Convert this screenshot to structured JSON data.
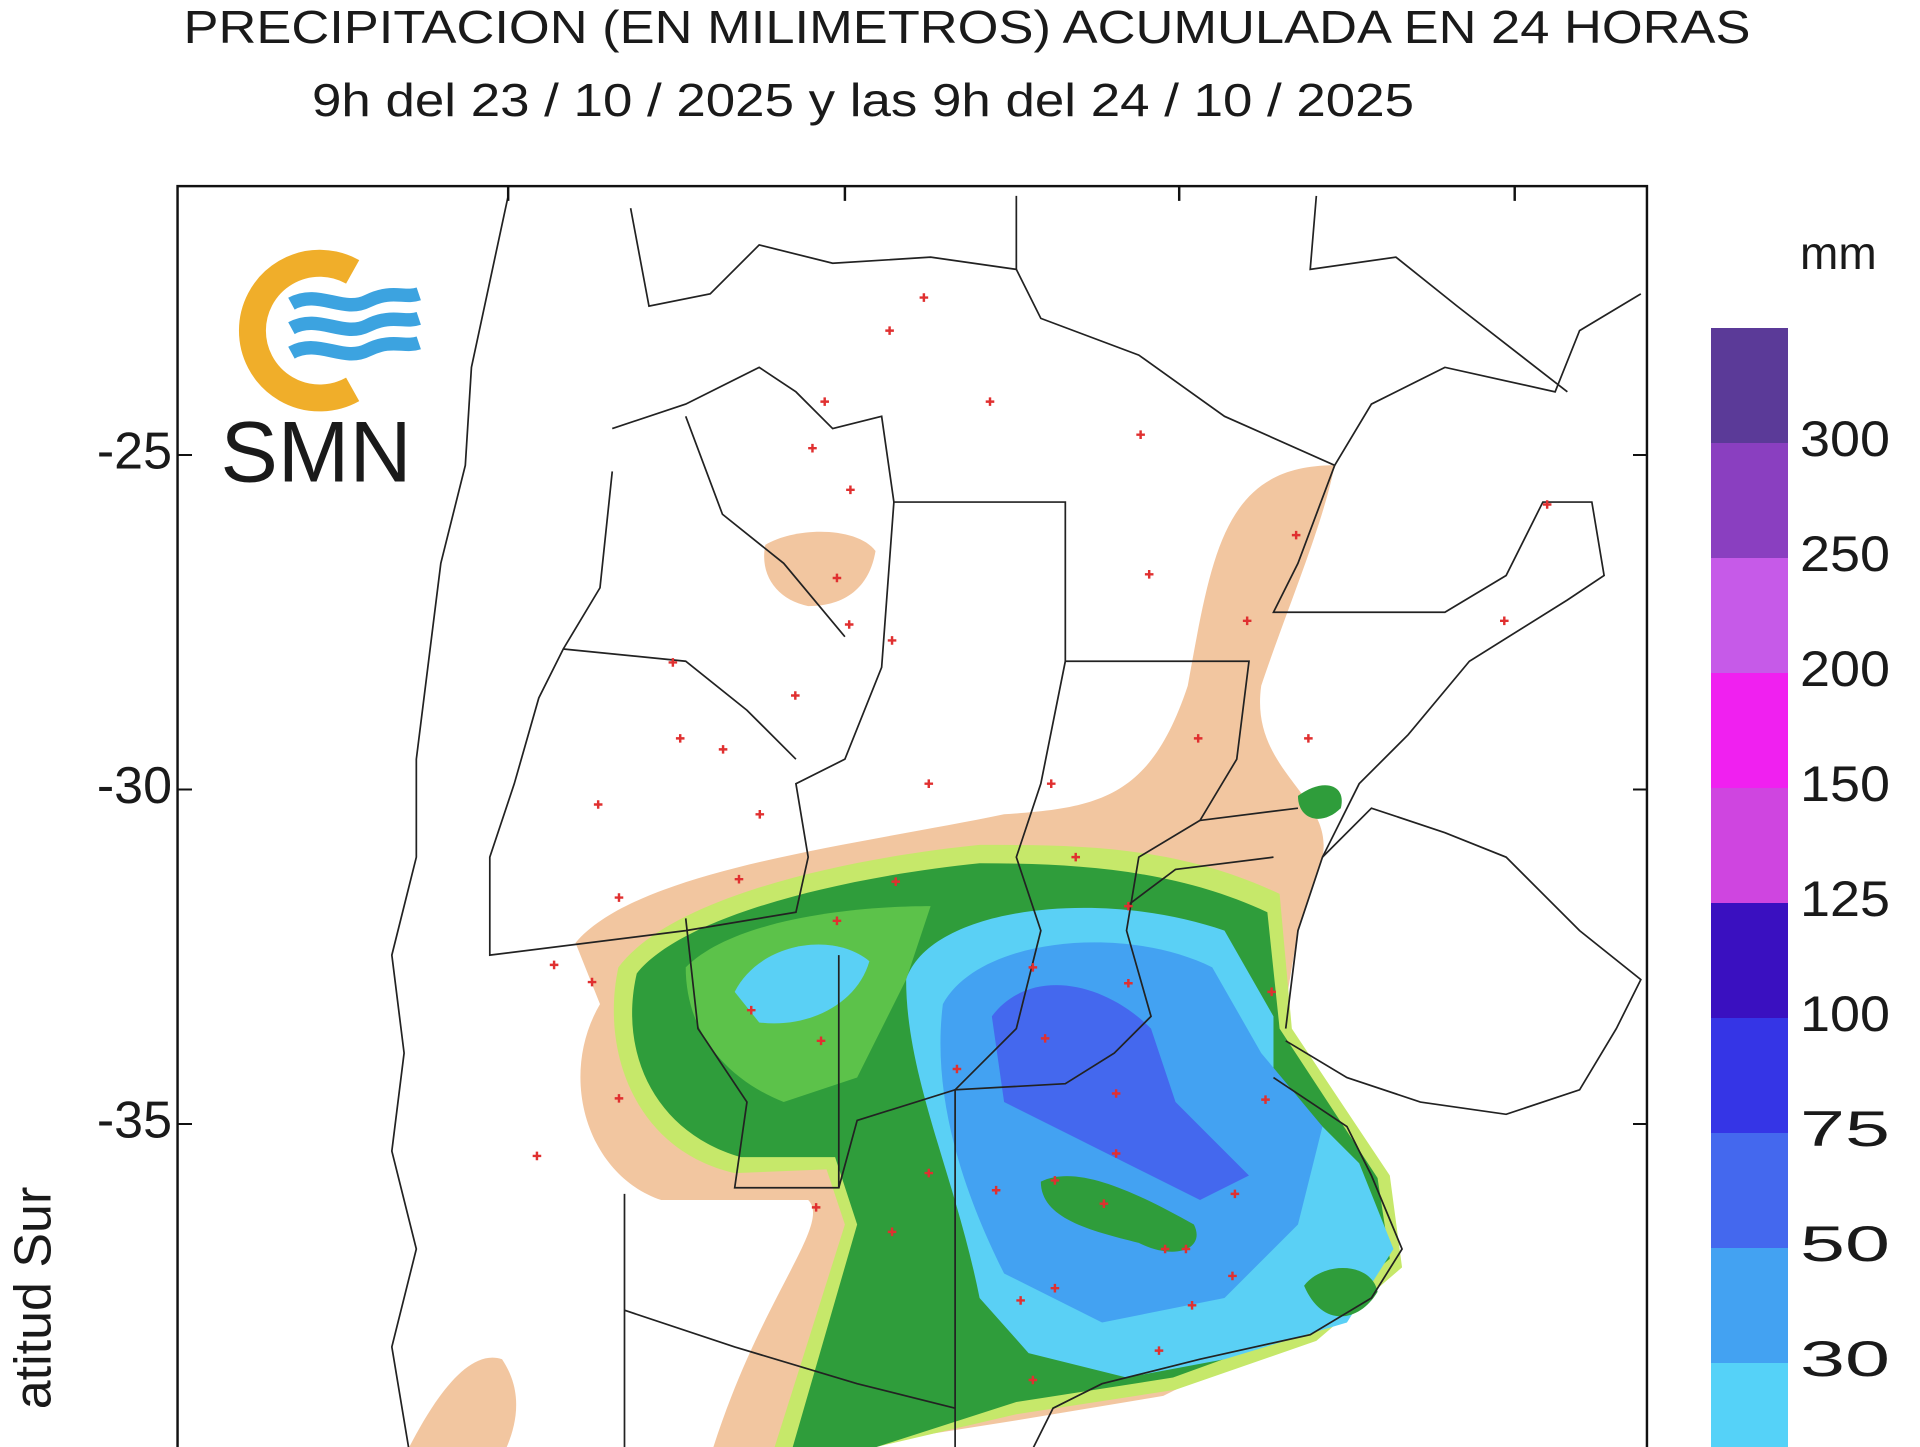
{
  "header": {
    "title": "PRECIPITACION (EN MILIMETROS) ACUMULADA EN 24 HORAS",
    "subtitle": "9h del 23 / 10 / 2025  y las 9h del 24 / 10 / 2025"
  },
  "logo": {
    "text": "SMN"
  },
  "map": {
    "y_axis_label": "atitud Sur",
    "lat_ticks": [
      -25,
      -30,
      -35
    ]
  },
  "legend": {
    "unit": "mm",
    "bins": [
      {
        "color": "#5b3a98"
      },
      {
        "color": "#8a3fc0"
      },
      {
        "color": "#c65ae8"
      },
      {
        "color": "#f020f0"
      },
      {
        "color": "#cf45e0"
      },
      {
        "color": "#3a10c0"
      },
      {
        "color": "#3535e6"
      },
      {
        "color": "#4468ee"
      },
      {
        "color": "#43a2f2"
      },
      {
        "color": "#55d2f8"
      }
    ],
    "labels": [
      300,
      250,
      200,
      150,
      125,
      100,
      75,
      50,
      30
    ]
  }
}
